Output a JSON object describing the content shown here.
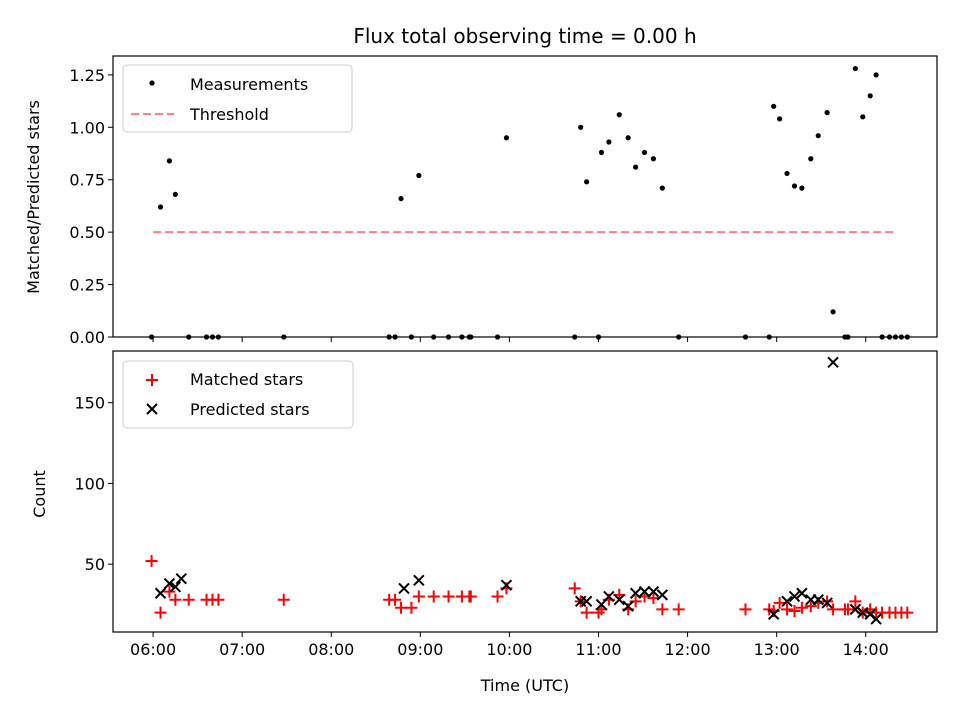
{
  "title": "Flux total observing time = 0.00 h",
  "chart_data": [
    {
      "type": "scatter",
      "ylabel": "Matched/Predicted stars",
      "xlabel": "",
      "xlim": [
        "05:33",
        "14:48"
      ],
      "ylim": [
        0,
        1.34
      ],
      "yticks": [
        0.0,
        0.25,
        0.5,
        0.75,
        1.0,
        1.25
      ],
      "ytick_labels": [
        "0.00",
        "0.25",
        "0.50",
        "0.75",
        "1.00",
        "1.25"
      ],
      "legend": {
        "position": "top-left",
        "entries": [
          "Measurements",
          "Threshold"
        ]
      },
      "series": [
        {
          "name": "Measurements",
          "marker": "dot",
          "color": "#000000",
          "points": [
            [
              "05:59",
              0
            ],
            [
              "06:05",
              0.62
            ],
            [
              "06:11",
              0.84
            ],
            [
              "06:15",
              0.68
            ],
            [
              "06:24",
              0
            ],
            [
              "06:36",
              0
            ],
            [
              "06:40",
              0
            ],
            [
              "06:44",
              0
            ],
            [
              "07:28",
              0
            ],
            [
              "08:39",
              0
            ],
            [
              "08:43",
              0
            ],
            [
              "08:47",
              0.66
            ],
            [
              "08:54",
              0
            ],
            [
              "08:59",
              0.77
            ],
            [
              "09:09",
              0
            ],
            [
              "09:19",
              0
            ],
            [
              "09:28",
              0
            ],
            [
              "09:33",
              0
            ],
            [
              "09:34",
              0
            ],
            [
              "09:52",
              0
            ],
            [
              "09:58",
              0.95
            ],
            [
              "10:44",
              0
            ],
            [
              "10:48",
              1.0
            ],
            [
              "10:52",
              0.74
            ],
            [
              "11:00",
              0
            ],
            [
              "11:02",
              0.88
            ],
            [
              "11:07",
              0.93
            ],
            [
              "11:14",
              1.06
            ],
            [
              "11:20",
              0.95
            ],
            [
              "11:25",
              0.81
            ],
            [
              "11:31",
              0.88
            ],
            [
              "11:37",
              0.85
            ],
            [
              "11:43",
              0.71
            ],
            [
              "11:54",
              0
            ],
            [
              "12:39",
              0
            ],
            [
              "12:55",
              0
            ],
            [
              "12:58",
              1.1
            ],
            [
              "13:02",
              1.04
            ],
            [
              "13:07",
              0.78
            ],
            [
              "13:12",
              0.72
            ],
            [
              "13:17",
              0.71
            ],
            [
              "13:23",
              0.85
            ],
            [
              "13:28",
              0.96
            ],
            [
              "13:34",
              1.07
            ],
            [
              "13:38",
              0.12
            ],
            [
              "13:46",
              0
            ],
            [
              "13:48",
              0
            ],
            [
              "13:53",
              1.28
            ],
            [
              "13:58",
              1.05
            ],
            [
              "14:03",
              1.15
            ],
            [
              "14:07",
              1.25
            ],
            [
              "14:11",
              0
            ],
            [
              "14:16",
              0
            ],
            [
              "14:20",
              0
            ],
            [
              "14:24",
              0
            ],
            [
              "14:28",
              0
            ]
          ]
        },
        {
          "name": "Threshold",
          "marker": "dashed-line",
          "color": "#ff7f7f",
          "points": [
            [
              "06:00",
              0.5
            ],
            [
              "14:20",
              0.5
            ]
          ]
        }
      ]
    },
    {
      "type": "scatter",
      "ylabel": "Count",
      "xlabel": "Time (UTC)",
      "xlim": [
        "05:33",
        "14:48"
      ],
      "ylim": [
        8,
        182
      ],
      "yticks": [
        50,
        100,
        150
      ],
      "ytick_labels": [
        "50",
        "100",
        "150"
      ],
      "xticks": [
        "06:00",
        "07:00",
        "08:00",
        "09:00",
        "10:00",
        "11:00",
        "12:00",
        "13:00",
        "14:00"
      ],
      "legend": {
        "position": "top-left",
        "entries": [
          "Matched stars",
          "Predicted stars"
        ]
      },
      "series": [
        {
          "name": "Matched stars",
          "marker": "plus",
          "color": "#ff0000",
          "points": [
            [
              "05:59",
              52
            ],
            [
              "06:05",
              20
            ],
            [
              "06:11",
              33
            ],
            [
              "06:15",
              28
            ],
            [
              "06:24",
              28
            ],
            [
              "06:36",
              28
            ],
            [
              "06:40",
              28
            ],
            [
              "06:44",
              28
            ],
            [
              "07:28",
              28
            ],
            [
              "08:39",
              28
            ],
            [
              "08:43",
              28
            ],
            [
              "08:47",
              23
            ],
            [
              "08:54",
              23
            ],
            [
              "08:59",
              30
            ],
            [
              "09:09",
              30
            ],
            [
              "09:19",
              30
            ],
            [
              "09:28",
              30
            ],
            [
              "09:33",
              30
            ],
            [
              "09:34",
              30
            ],
            [
              "09:52",
              30
            ],
            [
              "09:58",
              35
            ],
            [
              "10:44",
              35
            ],
            [
              "10:48",
              27
            ],
            [
              "10:52",
              20
            ],
            [
              "11:00",
              20
            ],
            [
              "11:02",
              22
            ],
            [
              "11:07",
              28
            ],
            [
              "11:14",
              31
            ],
            [
              "11:20",
              22
            ],
            [
              "11:25",
              27
            ],
            [
              "11:31",
              30
            ],
            [
              "11:37",
              29
            ],
            [
              "11:43",
              22
            ],
            [
              "11:54",
              22
            ],
            [
              "12:39",
              22
            ],
            [
              "12:55",
              22
            ],
            [
              "12:58",
              21
            ],
            [
              "13:02",
              26
            ],
            [
              "13:07",
              22
            ],
            [
              "13:12",
              21
            ],
            [
              "13:17",
              23
            ],
            [
              "13:23",
              24
            ],
            [
              "13:28",
              26
            ],
            [
              "13:34",
              27
            ],
            [
              "13:38",
              22
            ],
            [
              "13:46",
              22
            ],
            [
              "13:48",
              22
            ],
            [
              "13:53",
              27
            ],
            [
              "13:58",
              20
            ],
            [
              "14:03",
              22
            ],
            [
              "14:07",
              20
            ],
            [
              "14:11",
              20
            ],
            [
              "14:16",
              20
            ],
            [
              "14:20",
              20
            ],
            [
              "14:24",
              20
            ],
            [
              "14:28",
              20
            ]
          ]
        },
        {
          "name": "Predicted stars",
          "marker": "x",
          "color": "#000000",
          "points": [
            [
              "06:05",
              32
            ],
            [
              "06:11",
              38
            ],
            [
              "06:15",
              36
            ],
            [
              "06:19",
              41
            ],
            [
              "08:49",
              35
            ],
            [
              "08:59",
              40
            ],
            [
              "09:58",
              37
            ],
            [
              "10:48",
              27
            ],
            [
              "10:52",
              27
            ],
            [
              "11:02",
              25
            ],
            [
              "11:07",
              30
            ],
            [
              "11:14",
              28
            ],
            [
              "11:20",
              24
            ],
            [
              "11:25",
              32
            ],
            [
              "11:31",
              33
            ],
            [
              "11:37",
              33
            ],
            [
              "11:43",
              31
            ],
            [
              "12:58",
              19
            ],
            [
              "13:07",
              27
            ],
            [
              "13:12",
              30
            ],
            [
              "13:17",
              32
            ],
            [
              "13:23",
              28
            ],
            [
              "13:28",
              28
            ],
            [
              "13:34",
              26
            ],
            [
              "13:38",
              175
            ],
            [
              "13:53",
              22
            ],
            [
              "13:58",
              20
            ],
            [
              "14:03",
              19
            ],
            [
              "14:07",
              16
            ]
          ]
        }
      ]
    }
  ]
}
